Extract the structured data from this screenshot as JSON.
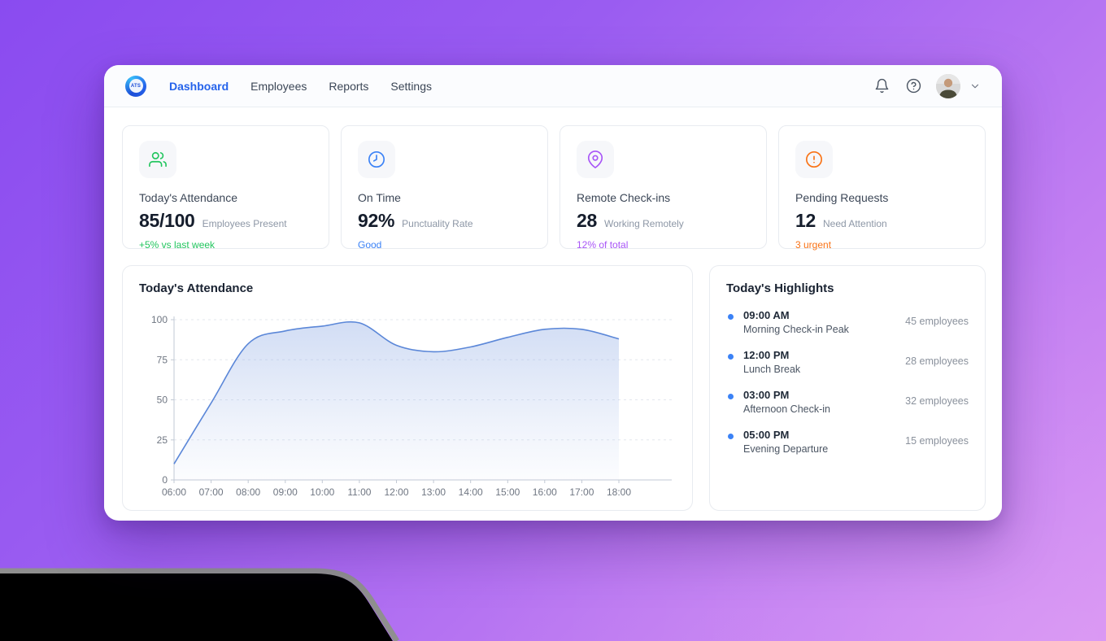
{
  "nav": {
    "logo_text": "ATS",
    "items": [
      {
        "label": "Dashboard",
        "active": true
      },
      {
        "label": "Employees",
        "active": false
      },
      {
        "label": "Reports",
        "active": false
      },
      {
        "label": "Settings",
        "active": false
      }
    ]
  },
  "stats": [
    {
      "icon": "users-icon",
      "icon_color": "#22c55e",
      "title": "Today's Attendance",
      "value": "85/100",
      "unit": "Employees Present",
      "footnote": "+5% vs last week",
      "footnote_color": "#22c55e"
    },
    {
      "icon": "clock-icon",
      "icon_color": "#3b82f6",
      "title": "On Time",
      "value": "92%",
      "unit": "Punctuality Rate",
      "footnote": "Good",
      "footnote_color": "#3b82f6"
    },
    {
      "icon": "map-pin-icon",
      "icon_color": "#a855f7",
      "title": "Remote Check-ins",
      "value": "28",
      "unit": "Working Remotely",
      "footnote": "12% of total",
      "footnote_color": "#a855f7"
    },
    {
      "icon": "alert-circle-icon",
      "icon_color": "#f97316",
      "title": "Pending Requests",
      "value": "12",
      "unit": "Need Attention",
      "footnote": "3 urgent",
      "footnote_color": "#f97316"
    }
  ],
  "chart_panel": {
    "title": "Today's Attendance"
  },
  "chart_data": {
    "type": "area",
    "title": "Today's Attendance",
    "x": [
      "06:00",
      "07:00",
      "08:00",
      "09:00",
      "10:00",
      "11:00",
      "12:00",
      "13:00",
      "14:00",
      "15:00",
      "16:00",
      "17:00",
      "18:00"
    ],
    "values": [
      10,
      48,
      85,
      93,
      96,
      98,
      84,
      80,
      83,
      89,
      94,
      94,
      88
    ],
    "xlabel": "",
    "ylabel": "",
    "ylim": [
      0,
      100
    ],
    "yticks": [
      0,
      25,
      50,
      75,
      100
    ],
    "grid": true,
    "legend": "none",
    "line_color": "#5b87d8",
    "fill_color": "#94afe6"
  },
  "highlights": {
    "title": "Today's Highlights",
    "items": [
      {
        "time": "09:00 AM",
        "label": "Morning Check-in Peak",
        "count": "45 employees"
      },
      {
        "time": "12:00 PM",
        "label": "Lunch Break",
        "count": "28 employees"
      },
      {
        "time": "03:00 PM",
        "label": "Afternoon Check-in",
        "count": "32 employees"
      },
      {
        "time": "05:00 PM",
        "label": "Evening Departure",
        "count": "15 employees"
      }
    ]
  }
}
